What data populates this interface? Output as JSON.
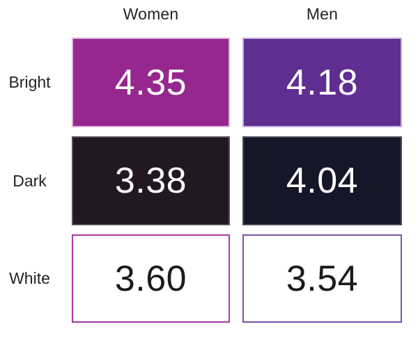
{
  "chart_data": {
    "type": "heatmap",
    "columns": [
      "Women",
      "Men"
    ],
    "rows": [
      "Bright",
      "Dark",
      "White"
    ],
    "values": [
      [
        4.35,
        4.18
      ],
      [
        3.38,
        4.04
      ],
      [
        3.6,
        3.54
      ]
    ],
    "labels": [
      [
        "4.35",
        "4.18"
      ],
      [
        "3.38",
        "4.04"
      ],
      [
        "3.60",
        "3.54"
      ]
    ],
    "legend_position": "none",
    "grid": "off",
    "cell_styles": [
      [
        {
          "bg": "#96278f",
          "border": "#dcb4dc",
          "text": "#ffffff"
        },
        {
          "bg": "#5f2e90",
          "border": "#c7b2dc",
          "text": "#ffffff"
        }
      ],
      [
        {
          "bg": "#221722",
          "border": "#565059",
          "text": "#ffffff"
        },
        {
          "bg": "#161629",
          "border": "#4c4c59",
          "text": "#ffffff"
        }
      ],
      [
        {
          "bg": "#ffffff",
          "border": "#a638a2",
          "text": "#1b1b1b"
        },
        {
          "bg": "#ffffff",
          "border": "#7b50ab",
          "text": "#1b1b1b"
        }
      ]
    ]
  }
}
